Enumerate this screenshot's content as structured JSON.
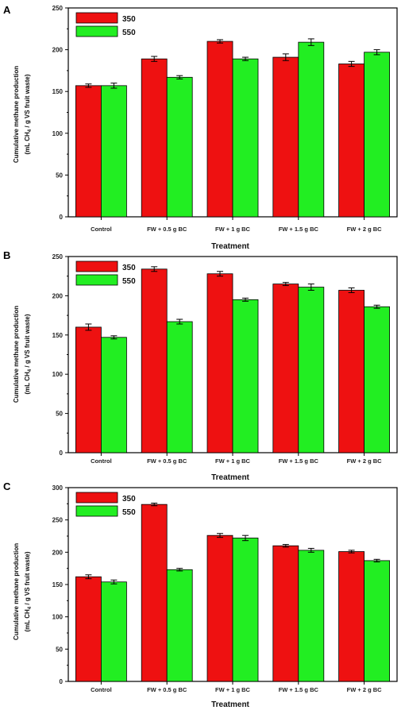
{
  "chart_data": [
    {
      "type": "bar",
      "panel_label": "A",
      "categories": [
        "Control",
        "FW + 0.5 g BC",
        "FW + 1 g BC",
        "FW + 1.5 g BC",
        "FW + 2 g BC"
      ],
      "series": [
        {
          "name": "350",
          "color": "#ee1111",
          "values": [
            157,
            189,
            210,
            191,
            183
          ],
          "errors": [
            2,
            3,
            2,
            4,
            3
          ]
        },
        {
          "name": "550",
          "color": "#22ee22",
          "values": [
            157,
            167,
            189,
            209,
            197
          ],
          "errors": [
            3,
            2,
            2,
            4,
            3
          ]
        }
      ],
      "xlabel": "Treatment",
      "ylabel_line1": "Cumulative methane production",
      "ylabel_line2_a": "(mL CH",
      "ylabel_sub": "4",
      "ylabel_line2_b": " / g VS fruit waste)",
      "ylim": [
        0,
        250
      ],
      "yticks": [
        0,
        50,
        100,
        150,
        200,
        250
      ],
      "legend_position": "top-left"
    },
    {
      "type": "bar",
      "panel_label": "B",
      "categories": [
        "Control",
        "FW + 0.5 g BC",
        "FW + 1 g BC",
        "FW + 1.5 g BC",
        "FW + 2 g BC"
      ],
      "series": [
        {
          "name": "350",
          "color": "#ee1111",
          "values": [
            160,
            234,
            228,
            215,
            207
          ],
          "errors": [
            4,
            3,
            3,
            2,
            3
          ]
        },
        {
          "name": "550",
          "color": "#22ee22",
          "values": [
            147,
            167,
            195,
            211,
            186
          ],
          "errors": [
            2,
            3,
            2,
            4,
            2
          ]
        }
      ],
      "xlabel": "Treatment",
      "ylabel_line1": "Cumulative methane production",
      "ylabel_line2_a": "(mL CH",
      "ylabel_sub": "4",
      "ylabel_line2_b": " / g VS fruit waste)",
      "ylim": [
        0,
        250
      ],
      "yticks": [
        0,
        50,
        100,
        150,
        200,
        250
      ],
      "legend_position": "top-left"
    },
    {
      "type": "bar",
      "panel_label": "C",
      "categories": [
        "Control",
        "FW + 0.5 g BC",
        "FW + 1 g BC",
        "FW + 1.5 g BC",
        "FW + 2 g BC"
      ],
      "series": [
        {
          "name": "350",
          "color": "#ee1111",
          "values": [
            162,
            274,
            226,
            210,
            201
          ],
          "errors": [
            3,
            2,
            3,
            2,
            2
          ]
        },
        {
          "name": "550",
          "color": "#22ee22",
          "values": [
            154,
            173,
            222,
            203,
            187
          ],
          "errors": [
            3,
            2,
            4,
            3,
            2
          ]
        }
      ],
      "xlabel": "Treatment",
      "ylabel_line1": "Cumulative methane production",
      "ylabel_line2_a": "(mL CH",
      "ylabel_sub": "4",
      "ylabel_line2_b": " / g VS fruit waste)",
      "ylim": [
        0,
        300
      ],
      "yticks": [
        0,
        50,
        100,
        150,
        200,
        250,
        300
      ],
      "legend_position": "top-left"
    }
  ]
}
